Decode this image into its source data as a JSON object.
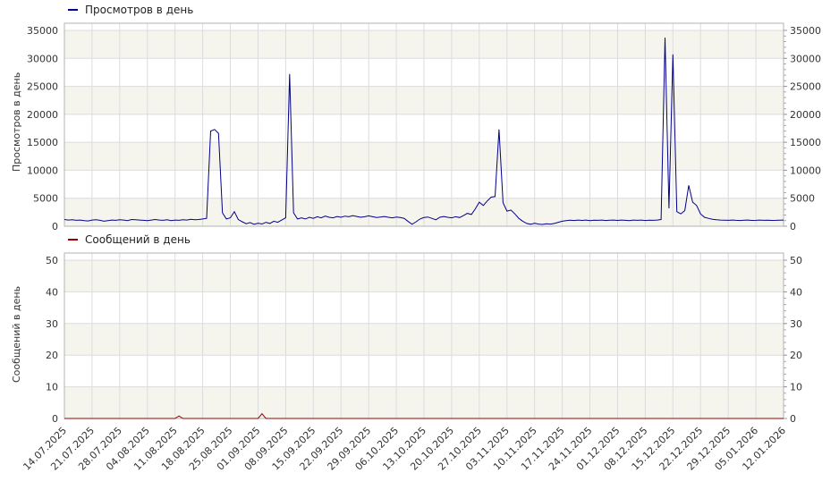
{
  "colors": {
    "views_line": "#00008b",
    "messages_line": "#990000",
    "grid": "#dcdcdc",
    "band": "#f5f5ee",
    "plot_border": "#b3b3b3",
    "axis_text": "#333333",
    "background": "#ffffff"
  },
  "chart_data": [
    {
      "type": "line",
      "legend": "Просмотров в день",
      "ylabel": "Просмотров в день",
      "color": "#00008b",
      "ylim": [
        0,
        35000
      ],
      "ytick_step": 5000,
      "yticks": [
        0,
        5000,
        10000,
        15000,
        20000,
        25000,
        30000,
        35000
      ],
      "x_range_days": [
        0,
        182
      ],
      "x_tick_every_days": 7,
      "grid": true,
      "legend_position": "top-left",
      "series": [
        {
          "name": "Просмотров в день",
          "points": [
            [
              0,
              1200
            ],
            [
              1,
              1100
            ],
            [
              2,
              1150
            ],
            [
              3,
              1050
            ],
            [
              4,
              1100
            ],
            [
              5,
              1000
            ],
            [
              6,
              950
            ],
            [
              7,
              1100
            ],
            [
              8,
              1150
            ],
            [
              9,
              1050
            ],
            [
              10,
              900
            ],
            [
              11,
              1000
            ],
            [
              12,
              1100
            ],
            [
              13,
              1050
            ],
            [
              14,
              1150
            ],
            [
              15,
              1100
            ],
            [
              16,
              1000
            ],
            [
              17,
              1200
            ],
            [
              18,
              1150
            ],
            [
              19,
              1100
            ],
            [
              20,
              1050
            ],
            [
              21,
              1000
            ],
            [
              22,
              1100
            ],
            [
              23,
              1200
            ],
            [
              24,
              1100
            ],
            [
              25,
              1050
            ],
            [
              26,
              1150
            ],
            [
              27,
              1000
            ],
            [
              28,
              1100
            ],
            [
              29,
              1050
            ],
            [
              30,
              1150
            ],
            [
              31,
              1100
            ],
            [
              32,
              1250
            ],
            [
              33,
              1150
            ],
            [
              34,
              1200
            ],
            [
              35,
              1300
            ],
            [
              36,
              1400
            ],
            [
              37,
              17000
            ],
            [
              38,
              17300
            ],
            [
              39,
              16600
            ],
            [
              40,
              2400
            ],
            [
              41,
              1300
            ],
            [
              42,
              1500
            ],
            [
              43,
              2600
            ],
            [
              44,
              1200
            ],
            [
              45,
              800
            ],
            [
              46,
              450
            ],
            [
              47,
              650
            ],
            [
              48,
              350
            ],
            [
              49,
              550
            ],
            [
              50,
              400
            ],
            [
              51,
              700
            ],
            [
              52,
              500
            ],
            [
              53,
              900
            ],
            [
              54,
              700
            ],
            [
              55,
              1100
            ],
            [
              56,
              1500
            ],
            [
              57,
              27200
            ],
            [
              58,
              2400
            ],
            [
              59,
              1300
            ],
            [
              60,
              1500
            ],
            [
              61,
              1300
            ],
            [
              62,
              1600
            ],
            [
              63,
              1400
            ],
            [
              64,
              1700
            ],
            [
              65,
              1500
            ],
            [
              66,
              1800
            ],
            [
              67,
              1600
            ],
            [
              68,
              1500
            ],
            [
              69,
              1750
            ],
            [
              70,
              1600
            ],
            [
              71,
              1800
            ],
            [
              72,
              1700
            ],
            [
              73,
              1900
            ],
            [
              74,
              1750
            ],
            [
              75,
              1600
            ],
            [
              76,
              1700
            ],
            [
              77,
              1850
            ],
            [
              78,
              1700
            ],
            [
              79,
              1550
            ],
            [
              80,
              1650
            ],
            [
              81,
              1750
            ],
            [
              82,
              1600
            ],
            [
              83,
              1500
            ],
            [
              84,
              1650
            ],
            [
              85,
              1550
            ],
            [
              86,
              1400
            ],
            [
              87,
              850
            ],
            [
              88,
              350
            ],
            [
              89,
              800
            ],
            [
              90,
              1300
            ],
            [
              91,
              1550
            ],
            [
              92,
              1650
            ],
            [
              93,
              1400
            ],
            [
              94,
              1150
            ],
            [
              95,
              1600
            ],
            [
              96,
              1750
            ],
            [
              97,
              1600
            ],
            [
              98,
              1500
            ],
            [
              99,
              1700
            ],
            [
              100,
              1550
            ],
            [
              101,
              1900
            ],
            [
              102,
              2300
            ],
            [
              103,
              2100
            ],
            [
              104,
              3100
            ],
            [
              105,
              4300
            ],
            [
              106,
              3700
            ],
            [
              107,
              4500
            ],
            [
              108,
              5200
            ],
            [
              109,
              5300
            ],
            [
              110,
              17300
            ],
            [
              111,
              4200
            ],
            [
              112,
              2700
            ],
            [
              113,
              2900
            ],
            [
              114,
              2200
            ],
            [
              115,
              1400
            ],
            [
              116,
              900
            ],
            [
              117,
              500
            ],
            [
              118,
              350
            ],
            [
              119,
              550
            ],
            [
              120,
              380
            ],
            [
              121,
              320
            ],
            [
              122,
              450
            ],
            [
              123,
              380
            ],
            [
              124,
              500
            ],
            [
              125,
              700
            ],
            [
              126,
              900
            ],
            [
              127,
              1000
            ],
            [
              128,
              1080
            ],
            [
              129,
              1020
            ],
            [
              130,
              1100
            ],
            [
              131,
              1040
            ],
            [
              132,
              1100
            ],
            [
              133,
              1000
            ],
            [
              134,
              1080
            ],
            [
              135,
              1050
            ],
            [
              136,
              1100
            ],
            [
              137,
              1020
            ],
            [
              138,
              1080
            ],
            [
              139,
              1100
            ],
            [
              140,
              1040
            ],
            [
              141,
              1100
            ],
            [
              142,
              1060
            ],
            [
              143,
              1000
            ],
            [
              144,
              1100
            ],
            [
              145,
              1050
            ],
            [
              146,
              1100
            ],
            [
              147,
              1030
            ],
            [
              148,
              1080
            ],
            [
              149,
              1050
            ],
            [
              150,
              1100
            ],
            [
              151,
              1200
            ],
            [
              152,
              33700
            ],
            [
              153,
              3200
            ],
            [
              154,
              30700
            ],
            [
              155,
              2600
            ],
            [
              156,
              2200
            ],
            [
              157,
              2800
            ],
            [
              158,
              7300
            ],
            [
              159,
              4300
            ],
            [
              160,
              3700
            ],
            [
              161,
              2200
            ],
            [
              162,
              1600
            ],
            [
              163,
              1400
            ],
            [
              164,
              1250
            ],
            [
              165,
              1150
            ],
            [
              166,
              1100
            ],
            [
              167,
              1080
            ],
            [
              168,
              1050
            ],
            [
              169,
              1100
            ],
            [
              170,
              1060
            ],
            [
              171,
              1020
            ],
            [
              172,
              1080
            ],
            [
              173,
              1100
            ],
            [
              174,
              1040
            ],
            [
              175,
              1060
            ],
            [
              176,
              1100
            ],
            [
              177,
              1050
            ],
            [
              178,
              1080
            ],
            [
              179,
              1040
            ],
            [
              180,
              1060
            ],
            [
              181,
              1080
            ],
            [
              182,
              1100
            ]
          ]
        }
      ]
    },
    {
      "type": "line",
      "legend": "Сообщений в день",
      "ylabel": "Сообщений в день",
      "color": "#990000",
      "ylim": [
        0,
        50
      ],
      "ytick_step": 10,
      "yticks": [
        0,
        10,
        20,
        30,
        40,
        50
      ],
      "x_range_days": [
        0,
        182
      ],
      "x_tick_every_days": 7,
      "x_tick_labels": [
        "14.07.2025",
        "21.07.2025",
        "28.07.2025",
        "04.08.2025",
        "11.08.2025",
        "18.08.2025",
        "25.08.2025",
        "01.09.2025",
        "08.09.2025",
        "15.09.2025",
        "22.09.2025",
        "29.09.2025",
        "06.10.2025",
        "13.10.2025",
        "20.10.2025",
        "27.10.2025",
        "03.11.2025",
        "10.11.2025",
        "17.11.2025",
        "24.11.2025",
        "01.12.2025",
        "08.12.2025",
        "15.12.2025",
        "22.12.2025",
        "29.12.2025",
        "05.01.2026",
        "12.01.2026"
      ],
      "grid": true,
      "legend_position": "top-left",
      "series": [
        {
          "name": "Сообщений в день",
          "points": [
            [
              0,
              0
            ],
            [
              28,
              0
            ],
            [
              29,
              0.8
            ],
            [
              30,
              0
            ],
            [
              49,
              0
            ],
            [
              50,
              1.5
            ],
            [
              51,
              0
            ],
            [
              182,
              0
            ]
          ]
        }
      ]
    }
  ]
}
